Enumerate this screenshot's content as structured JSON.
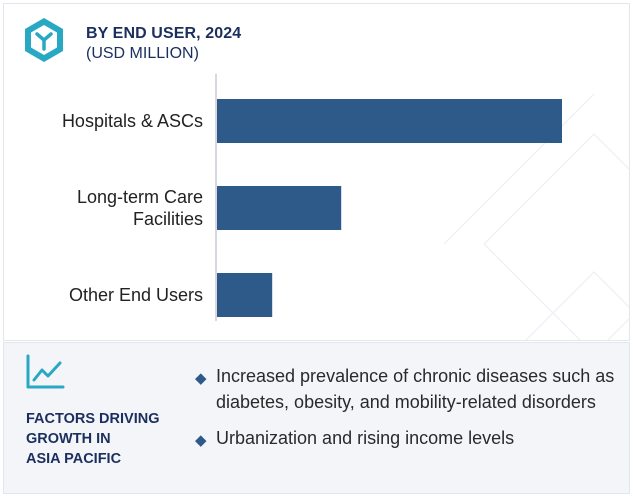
{
  "header": {
    "title": "BY END USER, 2024",
    "subtitle": "(USD MILLION)"
  },
  "chart_data": {
    "type": "bar",
    "orientation": "horizontal",
    "categories": [
      [
        "Hospitals & ASCs"
      ],
      [
        "Long-term Care",
        "Facilities"
      ],
      [
        "Other End Users"
      ]
    ],
    "values": [
      100,
      36,
      16
    ],
    "value_scale": "relative (no axis values printed)",
    "xlim": [
      0,
      100
    ],
    "title": "BY END USER, 2024",
    "subtitle": "(USD MILLION)",
    "bar_color": "#2e5a8a",
    "grid": false,
    "legend": "none"
  },
  "factors": {
    "heading_lines": [
      "FACTORS DRIVING",
      "GROWTH IN",
      "ASIA PACIFIC"
    ],
    "bullets": [
      "Increased prevalence of chronic diseases such as diabetes, obesity, and mobility-related disorders",
      "Urbanization and rising income levels"
    ]
  },
  "colors": {
    "brand_dark": "#1b2f5e",
    "bar": "#2e5a8a",
    "accent": "#29a8c4",
    "panel_bg": "#f3f5f9"
  },
  "icons": {
    "logo": "cube-y-logo-icon",
    "factors": "trend-line-chart-icon",
    "bullet": "diamond-bullet-icon"
  }
}
